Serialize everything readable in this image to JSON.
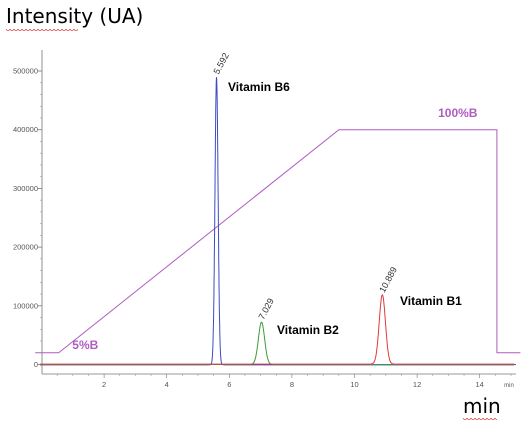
{
  "chart_data": {
    "type": "line",
    "xlabel": "min",
    "ylabel": "Intensity (UA)",
    "xlim": [
      0,
      15.2
    ],
    "ylim": [
      -6000,
      510000
    ],
    "x_ticks": [
      "2",
      "4",
      "6",
      "8",
      "10",
      "12",
      "14"
    ],
    "x_tick_values": [
      2,
      4,
      6,
      8,
      10,
      12,
      14
    ],
    "x_unit_label": "min",
    "y_ticks": [
      "0",
      "100000",
      "200000",
      "300000",
      "400000",
      "500000"
    ],
    "y_tick_values": [
      0,
      100000,
      200000,
      300000,
      400000,
      500000
    ],
    "grid": false,
    "series": [
      {
        "color": "#3b4cc0",
        "peaks": [
          {
            "x": 5.592,
            "y": 490000,
            "width": 0.05,
            "label": "5.592",
            "annotation": "Vitamin B6"
          }
        ]
      },
      {
        "color": "#3a9a3a",
        "peaks": [
          {
            "x": 7.029,
            "y": 72000,
            "width": 0.1,
            "label": "7.029",
            "annotation": "Vitamin B2"
          }
        ]
      },
      {
        "color": "#e03a3a",
        "peaks": [
          {
            "x": 10.889,
            "y": 118000,
            "width": 0.1,
            "label": "10.889",
            "annotation": "Vitamin B1"
          }
        ]
      }
    ],
    "gradient": {
      "color": "#b05cc0",
      "points": [
        [
          -0.2,
          20000
        ],
        [
          0.55,
          20000
        ],
        [
          9.5,
          400000
        ],
        [
          14.55,
          400000
        ],
        [
          14.55,
          20000
        ],
        [
          15.3,
          20000
        ]
      ],
      "labels": [
        {
          "text": "5%B",
          "x": 1.4,
          "y": 20000
        },
        {
          "text": "100%B",
          "x": 13.3,
          "y": 415000
        }
      ]
    }
  }
}
